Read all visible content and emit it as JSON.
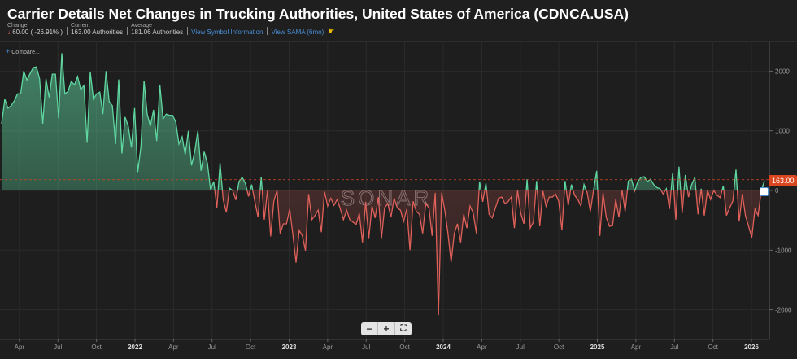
{
  "header": {
    "title": "Carrier Details Net Changes in Trucking Authorities, United States of America (CDNCA.USA)",
    "change_label": "Change",
    "change_value": "60.00 ( -26.91% )",
    "current_label": "Current",
    "current_value": "163.00 Authorities",
    "average_label": "Average",
    "average_value": "181.06 Authorities",
    "link_symbol": "View Symbol Information",
    "link_sama": "View SAMA (6mo)",
    "change_direction_icon": "arrow-down-icon",
    "sama_icon": "hand-icon"
  },
  "compare_label": "Compare...",
  "watermark": "SONAR",
  "zoom_controls": {
    "minus": "−",
    "plus": "+",
    "fullscreen": "⛶"
  },
  "last_value_label": "163.00",
  "colors": {
    "positive": "#5fd6a0",
    "negative": "#e0605a",
    "average_line": "#d9461f",
    "background": "#1e1e1e"
  },
  "chart_data": {
    "type": "area",
    "title": "Carrier Details Net Changes in Trucking Authorities, United States of America (CDNCA.USA)",
    "frequency": "weekly",
    "x_start": "2021-02",
    "x_end": "2026-01",
    "x_ticks": [
      {
        "label": "Apr",
        "date": 2021.25
      },
      {
        "label": "Jul",
        "date": 2021.5
      },
      {
        "label": "Oct",
        "date": 2021.75
      },
      {
        "label": "2022",
        "date": 2022,
        "bold": true
      },
      {
        "label": "Apr",
        "date": 2022.25
      },
      {
        "label": "Jul",
        "date": 2022.5
      },
      {
        "label": "Oct",
        "date": 2022.75
      },
      {
        "label": "2023",
        "date": 2023,
        "bold": true
      },
      {
        "label": "Apr",
        "date": 2023.25
      },
      {
        "label": "Jul",
        "date": 2023.5
      },
      {
        "label": "Oct",
        "date": 2023.75
      },
      {
        "label": "2024",
        "date": 2024,
        "bold": true
      },
      {
        "label": "Apr",
        "date": 2024.25
      },
      {
        "label": "Jul",
        "date": 2024.5
      },
      {
        "label": "Oct",
        "date": 2024.75
      },
      {
        "label": "2025",
        "date": 2025,
        "bold": true
      },
      {
        "label": "Apr",
        "date": 2025.25
      },
      {
        "label": "Jul",
        "date": 2025.5
      },
      {
        "label": "Oct",
        "date": 2025.75
      },
      {
        "label": "2026",
        "date": 2026,
        "bold": true
      }
    ],
    "y_ticks": [
      2000,
      1000,
      0,
      -1000,
      -2000
    ],
    "ylim": [
      -2500,
      2500
    ],
    "y_axis_position": "right",
    "average": 181.06,
    "grid": true,
    "values": [
      1120,
      1530,
      1380,
      1420,
      1500,
      1620,
      1620,
      2000,
      1850,
      1960,
      2060,
      2070,
      1870,
      1120,
      1870,
      1560,
      1950,
      1950,
      1210,
      2300,
      1620,
      1660,
      1830,
      1770,
      1910,
      1690,
      1760,
      800,
      1990,
      1530,
      1620,
      1650,
      1280,
      2000,
      1490,
      1420,
      780,
      1860,
      620,
      1230,
      1080,
      720,
      1380,
      310,
      740,
      1840,
      1280,
      1080,
      1350,
      830,
      1770,
      1200,
      1280,
      1260,
      1260,
      1150,
      780,
      900,
      600,
      1000,
      420,
      650,
      1000,
      330,
      650,
      460,
      10,
      150,
      -290,
      460,
      -150,
      -370,
      40,
      0,
      -160,
      150,
      220,
      120,
      -100,
      100,
      -190,
      -450,
      230,
      -490,
      0,
      -770,
      -180,
      0,
      -720,
      -560,
      -560,
      -310,
      -740,
      -1210,
      -670,
      -760,
      -1010,
      -60,
      -490,
      -420,
      -330,
      -700,
      -20,
      -260,
      -130,
      -250,
      -150,
      -310,
      -490,
      -330,
      -490,
      -530,
      -570,
      -380,
      -870,
      -190,
      -800,
      -260,
      -460,
      -110,
      -800,
      -290,
      -220,
      -450,
      -130,
      -290,
      -330,
      -520,
      -310,
      -1000,
      -180,
      -350,
      -400,
      -720,
      -220,
      -290,
      -760,
      -40,
      -2090,
      -40,
      -330,
      -720,
      -1200,
      -720,
      -560,
      -870,
      -400,
      -630,
      -260,
      -380,
      -720,
      150,
      -190,
      120,
      -400,
      -460,
      -290,
      -130,
      -110,
      -220,
      -190,
      -110,
      -630,
      0,
      -380,
      -560,
      190,
      -630,
      -530,
      160,
      -600,
      -10,
      -260,
      -110,
      -110,
      -60,
      -180,
      -670,
      160,
      -250,
      100,
      -80,
      -150,
      -260,
      100,
      -40,
      -350,
      0,
      330,
      -760,
      -40,
      -450,
      -600,
      -590,
      -150,
      -450,
      0,
      -350,
      160,
      190,
      -10,
      150,
      220,
      230,
      150,
      190,
      100,
      50,
      30,
      -60,
      30,
      -310,
      300,
      -490,
      400,
      -380,
      260,
      -110,
      100,
      220,
      -400,
      30,
      -420,
      0,
      -150,
      0,
      -80,
      -120,
      80,
      -420,
      -290,
      -180,
      350,
      -520,
      -60,
      -420,
      -600,
      -790,
      -310,
      -420,
      0,
      163
    ]
  }
}
